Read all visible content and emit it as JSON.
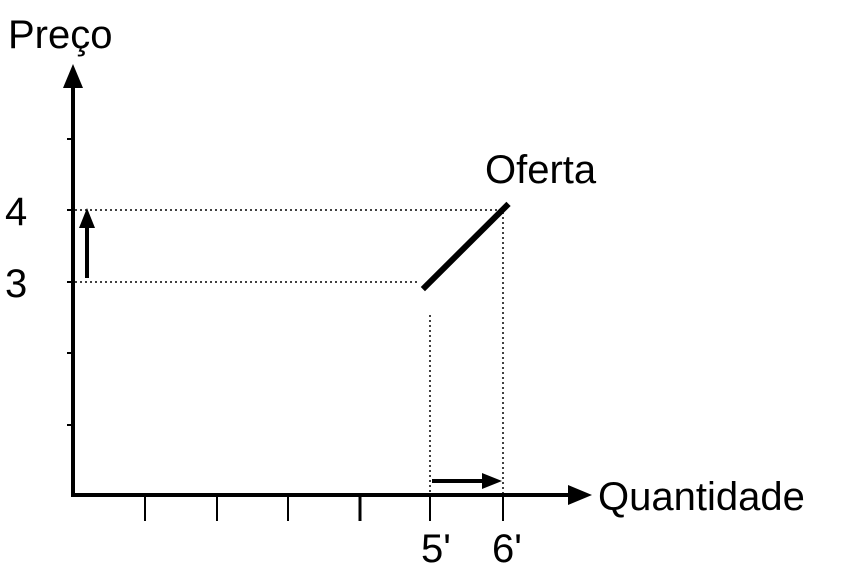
{
  "chart_data": {
    "type": "line",
    "ylabel": "Preço",
    "xlabel": "Quantidade",
    "yticks": [
      "3",
      "4"
    ],
    "xticks": [
      "5'",
      "6'"
    ],
    "series": [
      {
        "name": "Oferta",
        "points": [
          [
            5,
            3
          ],
          [
            6,
            4
          ]
        ]
      }
    ],
    "xlim": [
      0,
      6.35
    ],
    "ylim": [
      0,
      5.25
    ],
    "grid": false,
    "annotations": [
      "dotted guides from (5, 3) and (6, 4) to both axes",
      "upward arrow beside y-axis from 3 to 4",
      "rightward arrow above x-axis from 5 to 6"
    ],
    "colors": {
      "ink": "#000000",
      "background": "#ffffff"
    }
  }
}
